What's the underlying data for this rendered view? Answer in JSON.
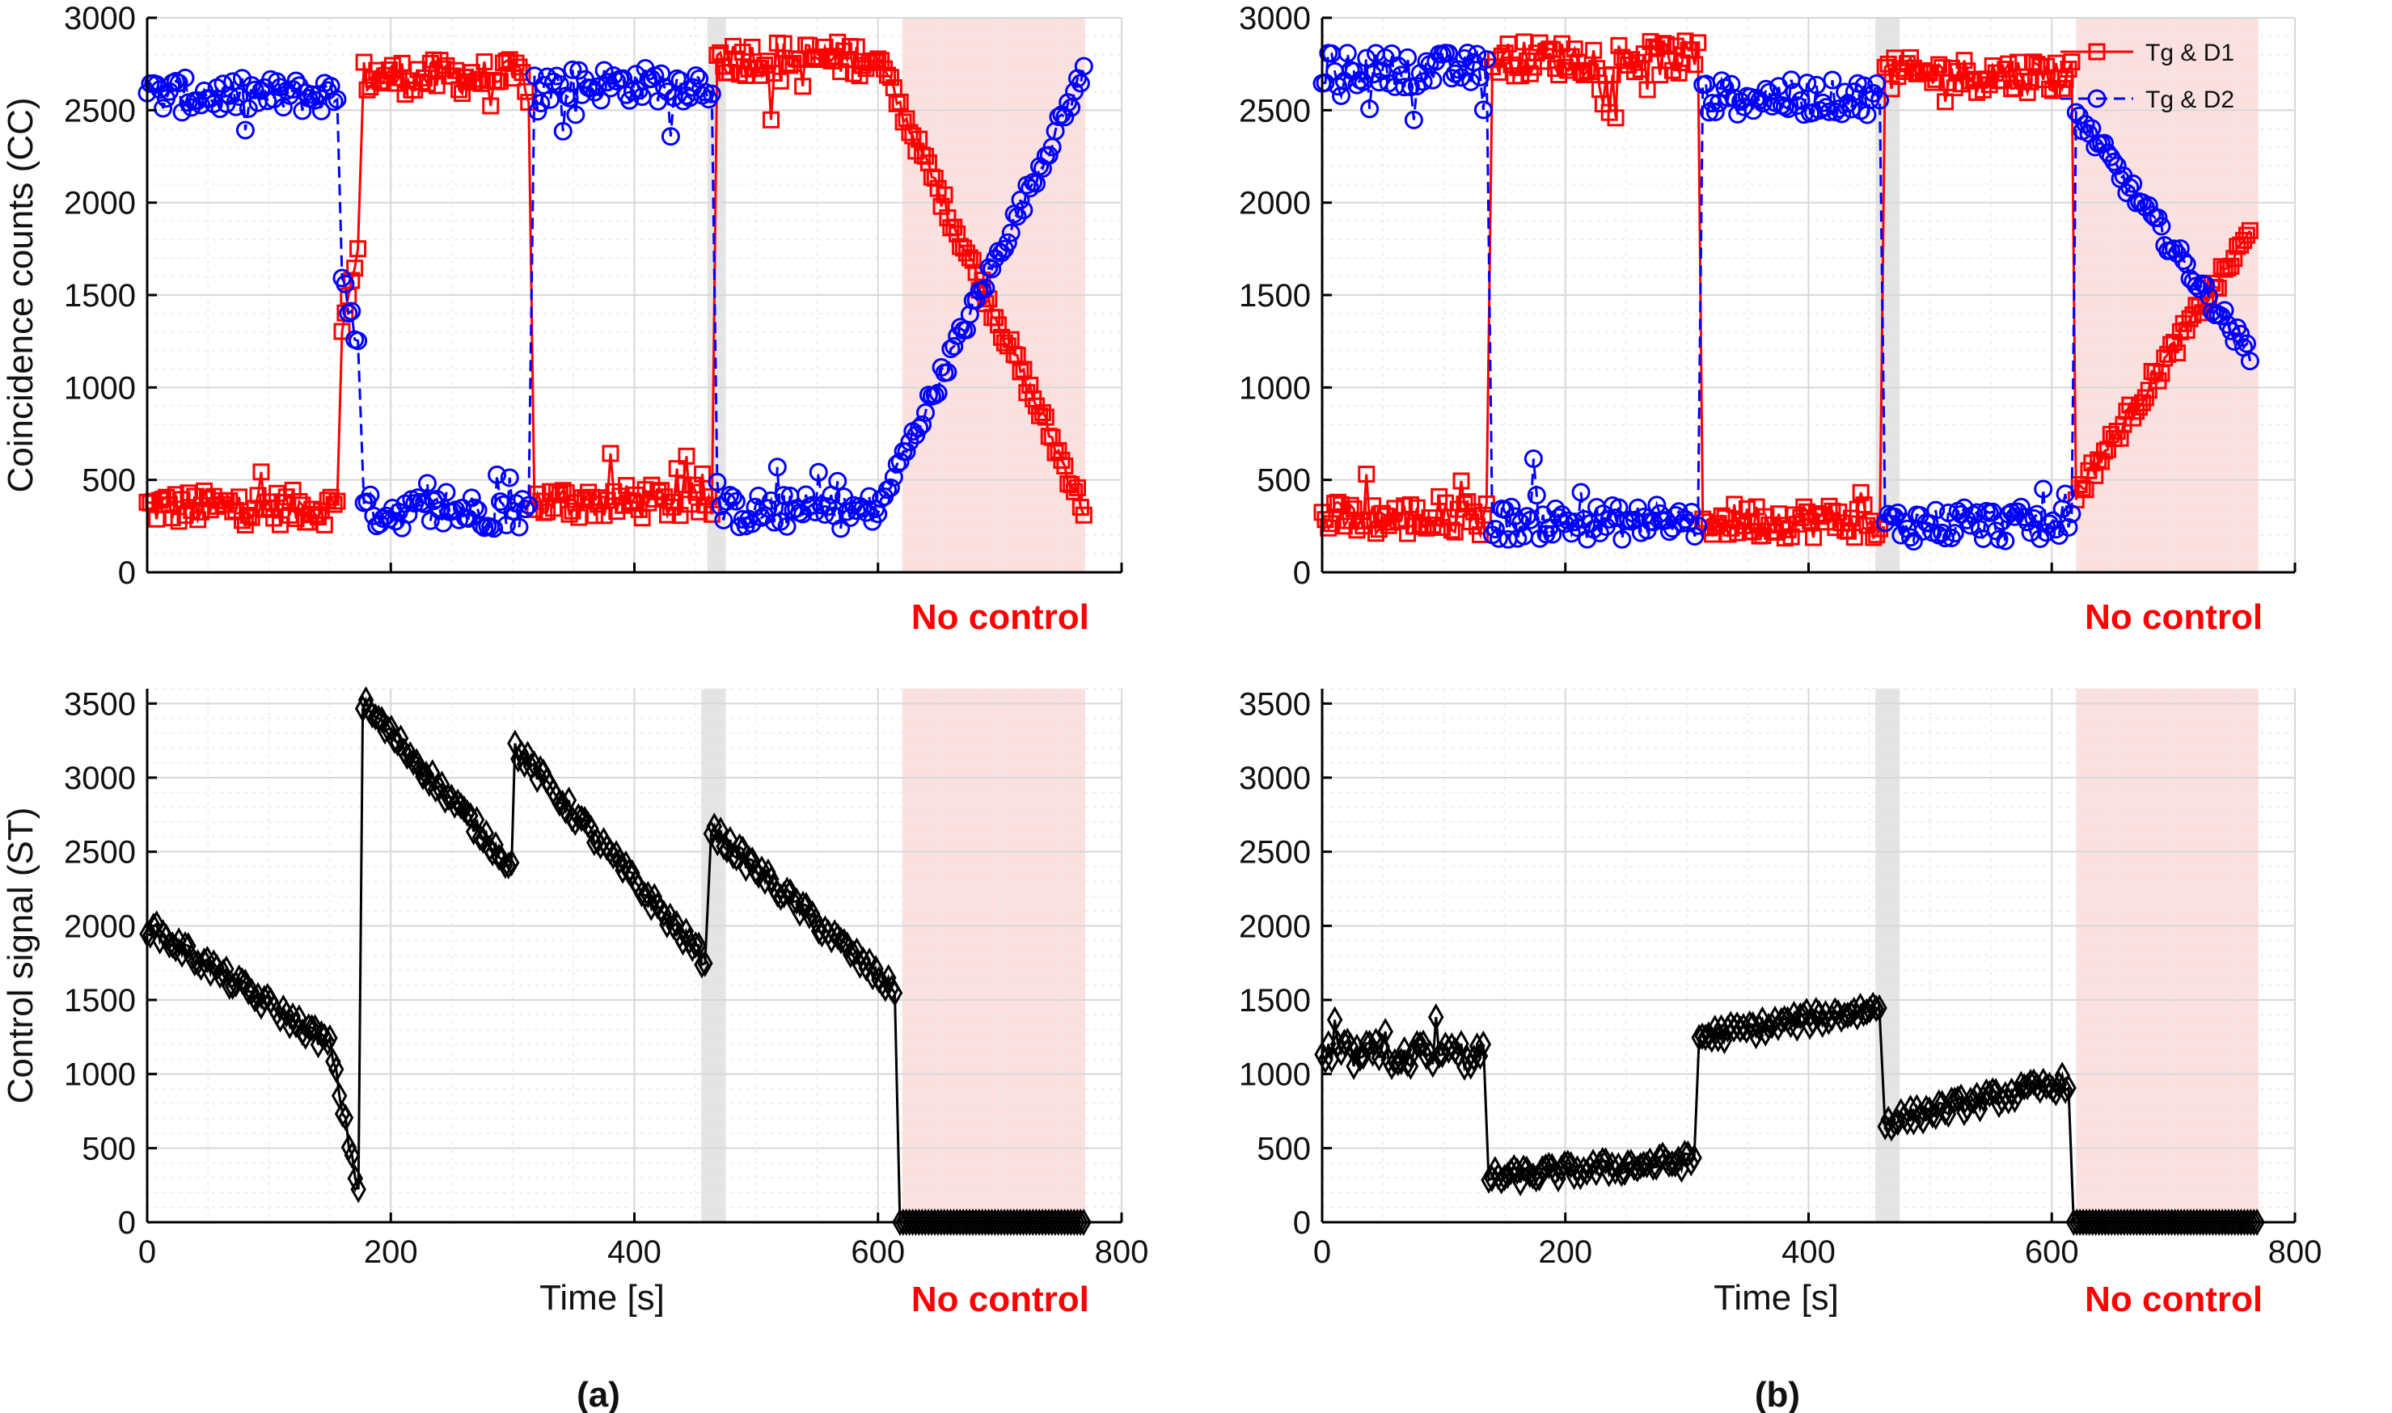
{
  "colors": {
    "d1": "#ff0000",
    "d2": "#0000ff",
    "control": "#000000",
    "no_control_band": "#fbe0e0",
    "gray_band": "#e4e4e4",
    "grid_major": "#d8d8d8",
    "grid_minor": "#ececec"
  },
  "panel_labels": [
    "(a)",
    "(b)"
  ],
  "chart_data": [
    {
      "id": "a-top",
      "type": "line",
      "ylabel": "Coincidence counts (CC)",
      "xlabel": "",
      "xlim": [
        0,
        800
      ],
      "ylim": [
        0,
        3000
      ],
      "yticks": [
        0,
        500,
        1000,
        1500,
        2000,
        2500,
        3000
      ],
      "xticks": [
        0,
        200,
        400,
        600,
        800
      ],
      "show_xtick_labels": false,
      "grid": true,
      "shaded_gray": [
        460,
        475
      ],
      "shaded_no_control": [
        620,
        770
      ],
      "annotation": "No control",
      "series": [
        {
          "name": "Tg & D1",
          "marker": "square",
          "color": "#ff0000",
          "dash": "solid",
          "segments": [
            {
              "from": 0,
              "to": 158,
              "mode": "flat",
              "level": 350
            },
            {
              "from": 160,
              "to": 175,
              "mode": "ramp",
              "start": 1300,
              "end": 1800
            },
            {
              "from": 178,
              "to": 315,
              "mode": "flat",
              "level": 2680
            },
            {
              "from": 318,
              "to": 465,
              "mode": "flat",
              "level": 380
            },
            {
              "from": 468,
              "to": 600,
              "mode": "flat",
              "level": 2780
            },
            {
              "from": 600,
              "to": 770,
              "mode": "ramp",
              "start": 2780,
              "end": 330
            }
          ]
        },
        {
          "name": "Tg & D2",
          "marker": "circle",
          "color": "#0000ff",
          "dash": "dashed",
          "segments": [
            {
              "from": 0,
              "to": 158,
              "mode": "flat",
              "level": 2580
            },
            {
              "from": 160,
              "to": 175,
              "mode": "ramp",
              "start": 1600,
              "end": 1150
            },
            {
              "from": 178,
              "to": 315,
              "mode": "flat",
              "level": 330
            },
            {
              "from": 318,
              "to": 465,
              "mode": "flat",
              "level": 2640
            },
            {
              "from": 468,
              "to": 600,
              "mode": "flat",
              "level": 330
            },
            {
              "from": 600,
              "to": 770,
              "mode": "ramp",
              "start": 330,
              "end": 2720
            }
          ]
        }
      ]
    },
    {
      "id": "b-top",
      "type": "line",
      "ylabel": "",
      "xlabel": "",
      "xlim": [
        0,
        800
      ],
      "ylim": [
        0,
        3000
      ],
      "yticks": [
        0,
        500,
        1000,
        1500,
        2000,
        2500,
        3000
      ],
      "xticks": [
        0,
        200,
        400,
        600,
        800
      ],
      "show_xtick_labels": false,
      "grid": true,
      "shaded_gray": [
        455,
        475
      ],
      "shaded_no_control": [
        620,
        770
      ],
      "annotation": "No control",
      "legend": {
        "position": "top-right",
        "entries": [
          "Tg & D1",
          "Tg & D2"
        ]
      },
      "series": [
        {
          "name": "Tg & D1",
          "marker": "square",
          "color": "#ff0000",
          "dash": "solid",
          "segments": [
            {
              "from": 0,
              "to": 137,
              "mode": "flat",
              "level": 290
            },
            {
              "from": 140,
              "to": 310,
              "mode": "flat",
              "level": 2780
            },
            {
              "from": 313,
              "to": 460,
              "mode": "flat",
              "level": 280
            },
            {
              "from": 463,
              "to": 618,
              "mode": "flat",
              "level": 2690
            },
            {
              "from": 620,
              "to": 765,
              "mode": "ramp",
              "start": 420,
              "end": 1850
            }
          ]
        },
        {
          "name": "Tg & D2",
          "marker": "circle",
          "color": "#0000ff",
          "dash": "dashed",
          "segments": [
            {
              "from": 0,
              "to": 137,
              "mode": "flat",
              "level": 2720
            },
            {
              "from": 140,
              "to": 310,
              "mode": "flat",
              "level": 270
            },
            {
              "from": 313,
              "to": 460,
              "mode": "flat",
              "level": 2570
            },
            {
              "from": 463,
              "to": 618,
              "mode": "flat",
              "level": 260
            },
            {
              "from": 620,
              "to": 765,
              "mode": "ramp",
              "start": 2480,
              "end": 1160
            }
          ]
        }
      ]
    },
    {
      "id": "a-bottom",
      "type": "line",
      "ylabel": "Control signal (ST)",
      "xlabel": "Time [s]",
      "xlim": [
        0,
        800
      ],
      "ylim": [
        0,
        3600
      ],
      "yticks": [
        0,
        500,
        1000,
        1500,
        2000,
        2500,
        3000,
        3500
      ],
      "xticks": [
        0,
        200,
        400,
        600,
        800
      ],
      "show_xtick_labels": true,
      "grid": true,
      "shaded_gray": [
        455,
        475
      ],
      "shaded_no_control": [
        620,
        770
      ],
      "annotation": "No control",
      "series": [
        {
          "name": "Control signal",
          "marker": "diamond",
          "color": "#000000",
          "dash": "solid",
          "segments": [
            {
              "from": 0,
              "to": 150,
              "mode": "ramp",
              "start": 2000,
              "end": 1200
            },
            {
              "from": 150,
              "to": 175,
              "mode": "ramp",
              "start": 1200,
              "end": 150
            },
            {
              "from": 177,
              "to": 300,
              "mode": "ramp",
              "start": 3500,
              "end": 2400
            },
            {
              "from": 302,
              "to": 460,
              "mode": "ramp",
              "start": 3200,
              "end": 1750
            },
            {
              "from": 463,
              "to": 615,
              "mode": "ramp",
              "start": 2650,
              "end": 1550
            },
            {
              "from": 618,
              "to": 770,
              "mode": "flat",
              "level": 0
            }
          ]
        }
      ]
    },
    {
      "id": "b-bottom",
      "type": "line",
      "ylabel": "",
      "xlabel": "Time [s]",
      "xlim": [
        0,
        800
      ],
      "ylim": [
        0,
        3600
      ],
      "yticks": [
        0,
        500,
        1000,
        1500,
        2000,
        2500,
        3000,
        3500
      ],
      "xticks": [
        0,
        200,
        400,
        600,
        800
      ],
      "show_xtick_labels": true,
      "grid": true,
      "shaded_gray": [
        455,
        475
      ],
      "shaded_no_control": [
        620,
        770
      ],
      "annotation": "No control",
      "series": [
        {
          "name": "Control signal",
          "marker": "diamond",
          "color": "#000000",
          "dash": "solid",
          "segments": [
            {
              "from": 0,
              "to": 135,
              "mode": "flat",
              "level": 1130
            },
            {
              "from": 137,
              "to": 308,
              "mode": "ramp",
              "start": 300,
              "end": 420
            },
            {
              "from": 310,
              "to": 460,
              "mode": "ramp",
              "start": 1250,
              "end": 1450
            },
            {
              "from": 463,
              "to": 615,
              "mode": "ramp",
              "start": 680,
              "end": 950
            },
            {
              "from": 618,
              "to": 770,
              "mode": "flat",
              "level": 0
            }
          ]
        }
      ]
    }
  ]
}
